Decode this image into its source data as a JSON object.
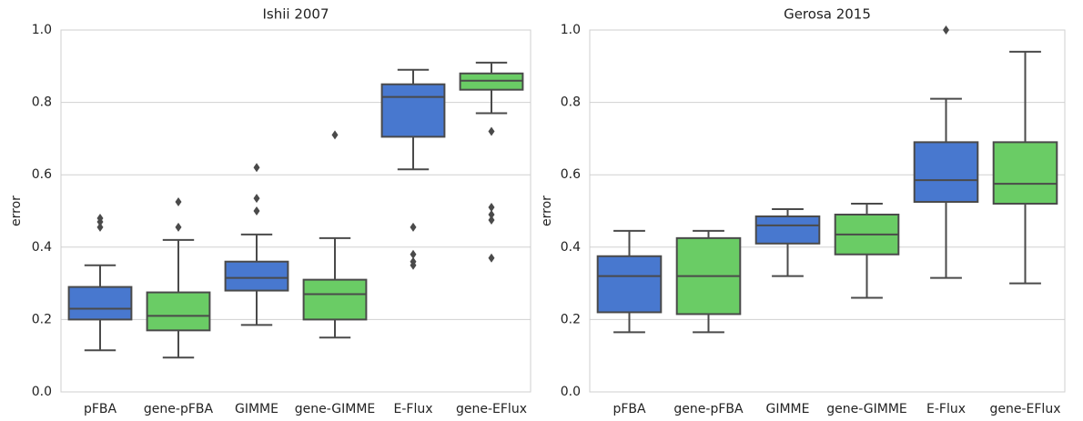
{
  "chart_data": [
    {
      "type": "box",
      "title": "Ishii 2007",
      "y_label": "error",
      "categories": [
        "pFBA",
        "gene-pFBA",
        "GIMME",
        "gene-GIMME",
        "E-Flux",
        "gene-EFlux"
      ],
      "boxes": [
        {
          "low": 0.115,
          "q1": 0.2,
          "median": 0.23,
          "q3": 0.29,
          "high": 0.35,
          "outliers": [
            0.455,
            0.47,
            0.48
          ],
          "color": "#4878cf"
        },
        {
          "low": 0.095,
          "q1": 0.17,
          "median": 0.21,
          "q3": 0.275,
          "high": 0.42,
          "outliers": [
            0.455,
            0.525
          ],
          "color": "#6acc65"
        },
        {
          "low": 0.185,
          "q1": 0.28,
          "median": 0.315,
          "q3": 0.36,
          "high": 0.435,
          "outliers": [
            0.5,
            0.535,
            0.62
          ],
          "color": "#4878cf"
        },
        {
          "low": 0.15,
          "q1": 0.2,
          "median": 0.27,
          "q3": 0.31,
          "high": 0.425,
          "outliers": [
            0.71
          ],
          "color": "#6acc65"
        },
        {
          "low": 0.615,
          "q1": 0.705,
          "median": 0.815,
          "q3": 0.85,
          "high": 0.89,
          "outliers": [
            0.35,
            0.36,
            0.38,
            0.455
          ],
          "color": "#4878cf"
        },
        {
          "low": 0.77,
          "q1": 0.835,
          "median": 0.86,
          "q3": 0.88,
          "high": 0.91,
          "outliers": [
            0.37,
            0.475,
            0.49,
            0.51,
            0.72
          ],
          "color": "#6acc65"
        }
      ],
      "ylim": [
        0,
        1
      ],
      "yticks": [
        {
          "value": 0,
          "label": "0.0"
        },
        0.2,
        0.4,
        0.6,
        0.8,
        {
          "value": 1,
          "label": "1.0"
        }
      ],
      "grid": true
    },
    {
      "type": "box",
      "title": "Gerosa 2015",
      "y_label": "error",
      "categories": [
        "pFBA",
        "gene-pFBA",
        "GIMME",
        "gene-GIMME",
        "E-Flux",
        "gene-EFlux"
      ],
      "boxes": [
        {
          "low": 0.165,
          "q1": 0.22,
          "median": 0.32,
          "q3": 0.375,
          "high": 0.445,
          "outliers": [],
          "color": "#4878cf"
        },
        {
          "low": 0.165,
          "q1": 0.215,
          "median": 0.32,
          "q3": 0.425,
          "high": 0.445,
          "outliers": [],
          "color": "#6acc65"
        },
        {
          "low": 0.32,
          "q1": 0.41,
          "median": 0.46,
          "q3": 0.485,
          "high": 0.505,
          "outliers": [],
          "color": "#4878cf"
        },
        {
          "low": 0.26,
          "q1": 0.38,
          "median": 0.435,
          "q3": 0.49,
          "high": 0.52,
          "outliers": [],
          "color": "#6acc65"
        },
        {
          "low": 0.315,
          "q1": 0.525,
          "median": 0.585,
          "q3": 0.69,
          "high": 0.81,
          "outliers": [
            1.0
          ],
          "color": "#4878cf"
        },
        {
          "low": 0.3,
          "q1": 0.52,
          "median": 0.575,
          "q3": 0.69,
          "high": 0.94,
          "outliers": [],
          "color": "#6acc65"
        }
      ],
      "ylim": [
        0,
        1
      ],
      "yticks": [
        {
          "value": 0,
          "label": "0.0"
        },
        0.2,
        0.4,
        0.6,
        0.8,
        {
          "value": 1,
          "label": "1.0"
        }
      ],
      "grid": true
    }
  ]
}
